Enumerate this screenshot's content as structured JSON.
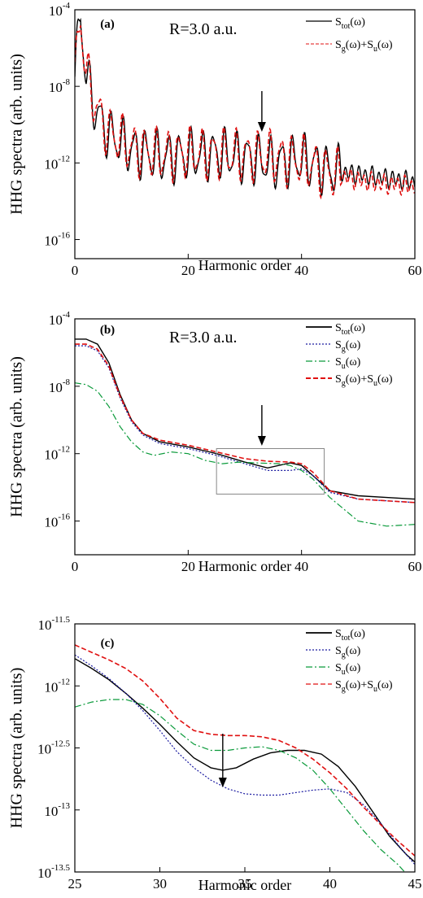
{
  "colors": {
    "axis": "#000000",
    "tot": "#000000",
    "g": "#1a1aa0",
    "u": "#0a9a3a",
    "sum": "#e01010",
    "box": "#888888"
  },
  "chart_data": [
    {
      "panel_label": "(a)",
      "annotation": "R=3.0 a.u.",
      "type": "line",
      "scale_y": "log",
      "xlabel": "Harmonic order",
      "ylabel": "HHG spectra (arb. units)",
      "xlim": [
        0,
        60
      ],
      "ylim": [
        1e-17,
        0.0001
      ],
      "x_ticks": [
        "0",
        "20",
        "40",
        "60"
      ],
      "y_ticks": [
        {
          "base": "10",
          "exp": "-4",
          "value": -4
        },
        {
          "base": "10",
          "exp": "-8",
          "value": -8
        },
        {
          "base": "10",
          "exp": "-12",
          "value": -12
        },
        {
          "base": "10",
          "exp": "-16",
          "value": -16
        }
      ],
      "arrow_x": 33,
      "legend": [
        {
          "main": "S",
          "sub": "tot",
          "tail": "(ω)",
          "color": "#000000",
          "dash": "",
          "width": 1.2
        },
        {
          "main": "S",
          "sub": "g",
          "mid": "(ω)+S",
          "sub2": "u",
          "tail": "(ω)",
          "color": "#e01010",
          "dash": "4,2",
          "width": 1.0
        }
      ],
      "series": [
        {
          "name": "Stot(ω)",
          "style": "tot",
          "x": [
            0,
            1,
            2,
            4,
            6,
            10,
            15,
            20,
            25,
            30,
            35,
            40,
            45,
            50,
            55,
            60
          ],
          "y": [
            -7.5,
            -4.2,
            -7.5,
            -9.5,
            -10.5,
            -11.3,
            -11.7,
            -11.6,
            -11.5,
            -11.7,
            -12.0,
            -11.8,
            -12.4,
            -12.6,
            -12.8,
            -13.0
          ]
        },
        {
          "name": "Sg(ω)+Su(ω)",
          "style": "sum",
          "x": [
            0,
            1,
            2,
            4,
            6,
            10,
            15,
            20,
            25,
            30,
            35,
            40,
            45,
            50,
            55,
            60
          ],
          "y": [
            -7.5,
            -4.4,
            -7.3,
            -9.3,
            -10.4,
            -11.2,
            -11.6,
            -11.5,
            -11.5,
            -11.6,
            -11.7,
            -11.9,
            -12.5,
            -12.9,
            -13.1,
            -13.2
          ]
        }
      ]
    },
    {
      "panel_label": "(b)",
      "annotation": "R=3.0 a.u.",
      "type": "line",
      "scale_y": "log",
      "xlabel": "Harmonic order",
      "ylabel": "HHG spectra (arb. units)",
      "xlim": [
        0,
        60
      ],
      "ylim": [
        1e-18,
        0.0001
      ],
      "x_ticks": [
        "0",
        "20",
        "40",
        "60"
      ],
      "y_ticks": [
        {
          "base": "10",
          "exp": "-4",
          "value": -4
        },
        {
          "base": "10",
          "exp": "-8",
          "value": -8
        },
        {
          "base": "10",
          "exp": "-12",
          "value": -12
        },
        {
          "base": "10",
          "exp": "-16",
          "value": -16
        }
      ],
      "arrow_x": 33,
      "inset_box": {
        "x": [
          25,
          44
        ],
        "y": [
          -14.4,
          -11.7
        ]
      },
      "legend": [
        {
          "main": "S",
          "sub": "tot",
          "tail": "(ω)",
          "color": "#000000",
          "dash": "",
          "width": 1.8
        },
        {
          "main": "S",
          "sub": "g",
          "tail": "(ω)",
          "color": "#1a1aa0",
          "dash": "2,2",
          "width": 1.2
        },
        {
          "main": "S",
          "sub": "u",
          "tail": "(ω)",
          "color": "#0a9a3a",
          "dash": "8,3,2,3",
          "width": 1.2
        },
        {
          "main": "S",
          "sub": "g",
          "mid": "(ω)+S",
          "sub2": "u",
          "tail": "(ω)",
          "color": "#e01010",
          "dash": "6,3",
          "width": 2.0
        }
      ],
      "series": [
        {
          "name": "Stot(ω)",
          "style": "tot",
          "x": [
            0,
            2,
            4,
            6,
            8,
            10,
            12,
            15,
            20,
            25,
            30,
            34,
            38,
            40,
            42,
            45,
            50,
            55,
            60
          ],
          "y": [
            -5.2,
            -5.2,
            -5.5,
            -6.6,
            -8.5,
            -10.0,
            -10.8,
            -11.3,
            -11.6,
            -12.0,
            -12.5,
            -12.85,
            -12.55,
            -12.7,
            -13.3,
            -14.2,
            -14.5,
            -14.6,
            -14.7
          ]
        },
        {
          "name": "Sg(ω)",
          "style": "g",
          "x": [
            0,
            2,
            4,
            6,
            8,
            10,
            12,
            15,
            20,
            25,
            30,
            34,
            38,
            40,
            42,
            45,
            50,
            55,
            60
          ],
          "y": [
            -5.6,
            -5.6,
            -5.9,
            -6.9,
            -8.7,
            -10.1,
            -10.9,
            -11.4,
            -11.7,
            -12.1,
            -12.6,
            -13.0,
            -13.0,
            -12.9,
            -13.3,
            -14.3,
            -14.7,
            -14.8,
            -14.9
          ]
        },
        {
          "name": "Su(ω)",
          "style": "u",
          "x": [
            0,
            2,
            4,
            6,
            8,
            10,
            12,
            14,
            17,
            20,
            23,
            26,
            29,
            32,
            36,
            38,
            40,
            42,
            45,
            50,
            55,
            60
          ],
          "y": [
            -7.8,
            -7.9,
            -8.3,
            -9.2,
            -10.4,
            -11.3,
            -11.9,
            -12.1,
            -11.9,
            -12.0,
            -12.4,
            -12.6,
            -12.5,
            -12.55,
            -12.6,
            -12.7,
            -13.0,
            -13.5,
            -14.6,
            -16.0,
            -16.3,
            -16.2
          ]
        },
        {
          "name": "Sg(ω)+Su(ω)",
          "style": "sum",
          "x": [
            0,
            2,
            4,
            6,
            8,
            10,
            12,
            15,
            20,
            25,
            30,
            34,
            38,
            40,
            42,
            45,
            50,
            55,
            60
          ],
          "y": [
            -5.5,
            -5.5,
            -5.8,
            -6.8,
            -8.6,
            -10.0,
            -10.8,
            -11.2,
            -11.5,
            -11.9,
            -12.3,
            -12.45,
            -12.5,
            -12.6,
            -13.1,
            -14.2,
            -14.7,
            -14.8,
            -14.9
          ]
        }
      ]
    },
    {
      "panel_label": "(c)",
      "type": "line",
      "scale_y": "log",
      "xlabel": "Harmonic order",
      "ylabel": "HHG spectra (arb. units)",
      "xlim": [
        25,
        45
      ],
      "ylim": [
        -13.5,
        -11.5
      ],
      "x_ticks": [
        "25",
        "30",
        "35",
        "40",
        "45"
      ],
      "y_ticks": [
        {
          "base": "10",
          "exp": "-11.5",
          "value": -11.5
        },
        {
          "base": "10",
          "exp": "-12",
          "value": -12
        },
        {
          "base": "10",
          "exp": "-12.5",
          "value": -12.5
        },
        {
          "base": "10",
          "exp": "-13",
          "value": -13
        },
        {
          "base": "10",
          "exp": "-13.5",
          "value": -13.5
        }
      ],
      "arrow_x": 33.7,
      "legend": [
        {
          "main": "S",
          "sub": "tot",
          "tail": "(ω)",
          "color": "#000000",
          "dash": "",
          "width": 1.8
        },
        {
          "main": "S",
          "sub": "g",
          "tail": "(ω)",
          "color": "#1a1aa0",
          "dash": "2,2",
          "width": 1.2
        },
        {
          "main": "S",
          "sub": "u",
          "tail": "(ω)",
          "color": "#0a9a3a",
          "dash": "8,3,2,3",
          "width": 1.2
        },
        {
          "main": "S",
          "sub": "g",
          "mid": "(ω)+S",
          "sub2": "u",
          "tail": "(ω)",
          "color": "#e01010",
          "dash": "6,3",
          "width": 1.2
        }
      ],
      "series": [
        {
          "name": "Stot(ω)",
          "style": "tot",
          "x": [
            25,
            26,
            27,
            28,
            29,
            30,
            31,
            32,
            33,
            33.7,
            34.5,
            35.5,
            36.5,
            37.5,
            38.5,
            39.5,
            40.5,
            41.5,
            42.5,
            43.5,
            44.5,
            45
          ],
          "y": [
            -11.78,
            -11.86,
            -11.95,
            -12.06,
            -12.18,
            -12.31,
            -12.45,
            -12.58,
            -12.66,
            -12.68,
            -12.66,
            -12.59,
            -12.54,
            -12.52,
            -12.52,
            -12.55,
            -12.65,
            -12.81,
            -13.01,
            -13.21,
            -13.36,
            -13.42
          ]
        },
        {
          "name": "Sg(ω)",
          "style": "g",
          "x": [
            25,
            26,
            27,
            28,
            29,
            30,
            31,
            32,
            33,
            34,
            35,
            36,
            37,
            38,
            39,
            40,
            41,
            42,
            43,
            44,
            45
          ],
          "y": [
            -11.75,
            -11.84,
            -11.94,
            -12.06,
            -12.2,
            -12.36,
            -12.53,
            -12.66,
            -12.76,
            -12.83,
            -12.87,
            -12.88,
            -12.88,
            -12.86,
            -12.84,
            -12.83,
            -12.86,
            -12.96,
            -13.11,
            -13.28,
            -13.44
          ]
        },
        {
          "name": "Su(ω)",
          "style": "u",
          "x": [
            25,
            26,
            27,
            28,
            29,
            30,
            31,
            32,
            33,
            34,
            35,
            36,
            37,
            38,
            39,
            40,
            41,
            42,
            43,
            44,
            44.4
          ],
          "y": [
            -12.17,
            -12.13,
            -12.11,
            -12.11,
            -12.15,
            -12.24,
            -12.36,
            -12.47,
            -12.52,
            -12.52,
            -12.5,
            -12.49,
            -12.52,
            -12.58,
            -12.68,
            -12.83,
            -13.0,
            -13.17,
            -13.32,
            -13.44,
            -13.5
          ]
        },
        {
          "name": "Sg(ω)+Su(ω)",
          "style": "sum",
          "x": [
            25,
            26,
            27,
            28,
            29,
            30,
            31,
            32,
            33,
            34,
            35,
            36,
            37,
            38,
            39,
            40,
            41,
            42,
            43,
            44,
            45
          ],
          "y": [
            -11.67,
            -11.73,
            -11.79,
            -11.86,
            -11.96,
            -12.1,
            -12.26,
            -12.36,
            -12.39,
            -12.4,
            -12.4,
            -12.41,
            -12.44,
            -12.5,
            -12.59,
            -12.7,
            -12.83,
            -12.98,
            -13.12,
            -13.25,
            -13.37
          ]
        }
      ]
    }
  ]
}
